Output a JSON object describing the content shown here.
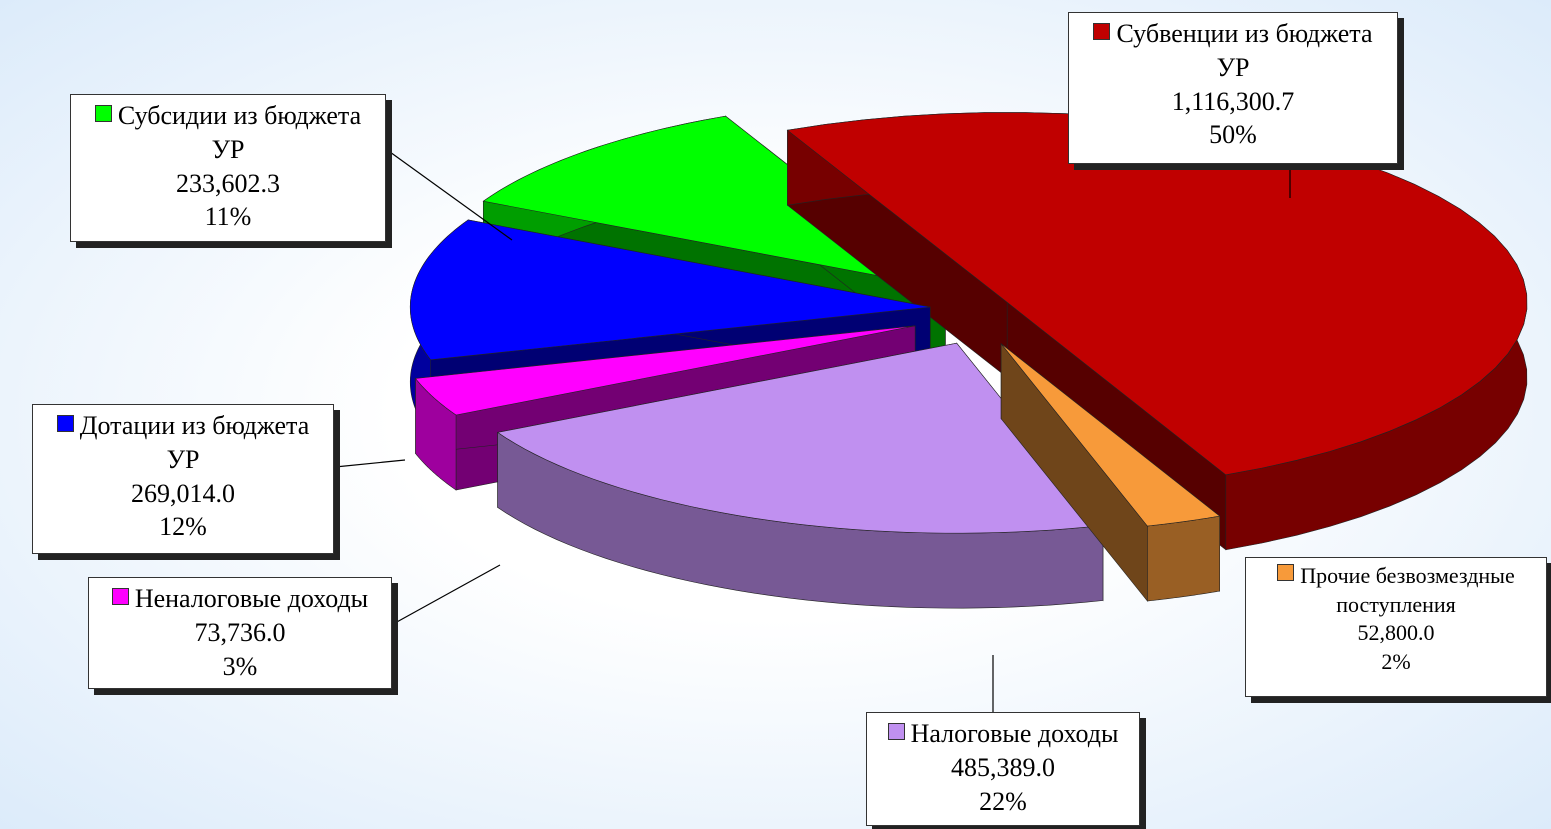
{
  "chart_data": {
    "type": "pie",
    "categories": [
      "Субвенции из бюджета УР",
      "Прочие безвозмездные поступления",
      "Налоговые доходы",
      "Неналоговые доходы",
      "Дотации из бюджета УР",
      "Субсидии из бюджета УР"
    ],
    "values": [
      1116300.7,
      52800.0,
      485389.0,
      73736.0,
      269014.0,
      233602.3
    ],
    "value_labels": [
      "1,116,300.7",
      "52,800.0",
      "485,389.0",
      "73,736.0",
      "269,014.0",
      "233,602.3"
    ],
    "percentages": [
      50,
      2,
      22,
      3,
      12,
      11
    ],
    "percent_labels": [
      "50%",
      "2%",
      "22%",
      "3%",
      "12%",
      "11%"
    ],
    "colors": [
      "#c00000",
      "#f79a3a",
      "#c090f0",
      "#ff00ff",
      "#0000ff",
      "#00ff00"
    ]
  }
}
